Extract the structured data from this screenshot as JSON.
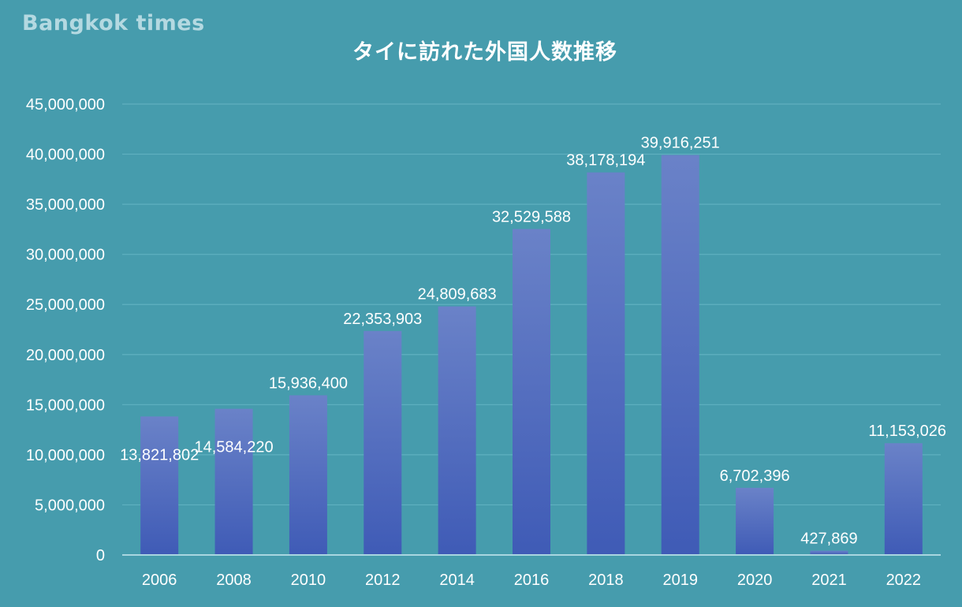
{
  "brand": "Bangkok times",
  "colors": {
    "background": "#469cad",
    "bar_top": "#6a82c8",
    "bar_bottom": "#3f5bb6",
    "gridline": "#5fb0c0",
    "axis": "#a9d6e0",
    "text": "#ffffff"
  },
  "chart_data": {
    "type": "bar",
    "title": "タイに訪れた外国人数推移",
    "xlabel": "",
    "ylabel": "",
    "categories": [
      "2006",
      "2008",
      "2010",
      "2012",
      "2014",
      "2016",
      "2018",
      "2019",
      "2020",
      "2021",
      "2022"
    ],
    "values": [
      13821802,
      14584220,
      15936400,
      22353903,
      24809683,
      32529588,
      38178194,
      39916251,
      6702396,
      427869,
      11153026
    ],
    "data_labels": [
      "13,821,802",
      "14,584,220",
      "15,936,400",
      "22,353,903",
      "24,809,683",
      "32,529,588",
      "38,178,194",
      "39,916,251",
      "6,702,396",
      "427,869",
      "11,153,026"
    ],
    "ylim": [
      0,
      45000000
    ],
    "y_ticks": [
      0,
      5000000,
      10000000,
      15000000,
      20000000,
      25000000,
      30000000,
      35000000,
      40000000,
      45000000
    ],
    "y_tick_labels": [
      "0",
      "5,000,000",
      "10,000,000",
      "15,000,000",
      "20,000,000",
      "25,000,000",
      "30,000,000",
      "35,000,000",
      "40,000,000",
      "45,000,000"
    ],
    "grid": true,
    "legend": "none"
  }
}
